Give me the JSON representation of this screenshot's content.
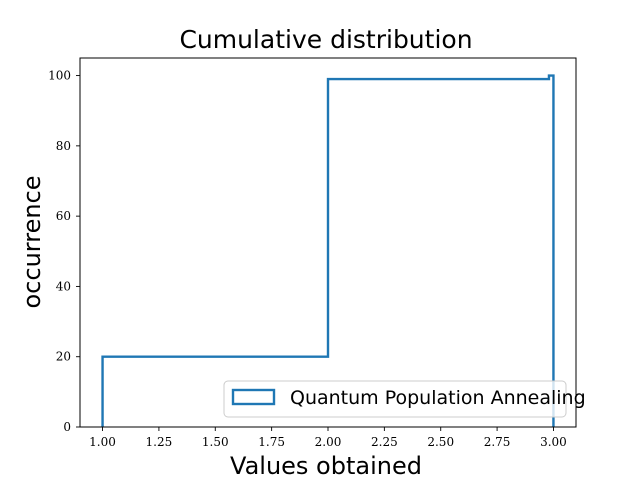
{
  "chart_data": {
    "type": "step",
    "title": "Cumulative distribution",
    "xlabel": "Values obtained",
    "ylabel": "occurrence",
    "xlim": [
      0.9,
      3.1
    ],
    "ylim": [
      0,
      105
    ],
    "x_ticks": [
      "1.00",
      "1.25",
      "1.50",
      "1.75",
      "2.00",
      "2.25",
      "2.50",
      "2.75",
      "3.00"
    ],
    "y_ticks": [
      "0",
      "20",
      "40",
      "60",
      "80",
      "100"
    ],
    "grid": false,
    "legend_position": "bottom-right",
    "series": [
      {
        "name": "Quantum Population Annealing",
        "color": "#1f77b4",
        "style": "cumulative step histogram",
        "points": [
          {
            "x": 1.0,
            "y": 0
          },
          {
            "x": 1.0,
            "y": 20
          },
          {
            "x": 2.0,
            "y": 20
          },
          {
            "x": 2.0,
            "y": 99
          },
          {
            "x": 2.98,
            "y": 99
          },
          {
            "x": 2.98,
            "y": 100
          },
          {
            "x": 3.0,
            "y": 100
          },
          {
            "x": 3.0,
            "y": 0
          }
        ]
      }
    ]
  }
}
